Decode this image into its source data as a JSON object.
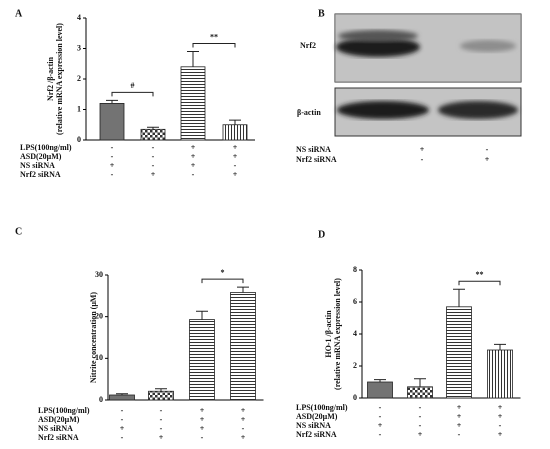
{
  "chart_data": [
    {
      "type": "bar",
      "panel_label": "A",
      "ylabel": [
        "Nrf2 /β-actin",
        "(relative mRNA expression level)"
      ],
      "values": [
        1.2,
        0.35,
        2.4,
        0.5
      ],
      "errors": [
        0.1,
        0.07,
        0.5,
        0.15
      ],
      "ylim": [
        0,
        4
      ],
      "yticks": [
        0,
        1,
        2,
        3,
        4
      ],
      "color": "#737373",
      "bar_styles": [
        "solid",
        "checker",
        "hlines",
        "vlines"
      ],
      "annotations": [
        {
          "label": "#",
          "bars": [
            0,
            1
          ]
        },
        {
          "label": "**",
          "bars": [
            2,
            3
          ]
        }
      ],
      "conditions": [
        {
          "name": "LPS(100ng/ml)",
          "signs": [
            "-",
            "-",
            "+",
            "+"
          ]
        },
        {
          "name": "ASD(20μM)",
          "signs": [
            "-",
            "-",
            "+",
            "+"
          ]
        },
        {
          "name": "NS siRNA",
          "signs": [
            "+",
            "-",
            "+",
            "-"
          ]
        },
        {
          "name": "Nrf2 siRNA",
          "signs": [
            "-",
            "+",
            "-",
            "+"
          ]
        }
      ]
    },
    {
      "type": "bar",
      "panel_label": "C",
      "ylabel": [
        "Nitrite concentration (μM)"
      ],
      "values": [
        1.2,
        2.1,
        19.3,
        25.8
      ],
      "errors": [
        0.3,
        0.6,
        2,
        1.3
      ],
      "ylim": [
        0,
        30
      ],
      "yticks": [
        0,
        10,
        20,
        30
      ],
      "color": "#737373",
      "bar_styles": [
        "solid",
        "checker",
        "hlines",
        "hlines"
      ],
      "annotations": [
        {
          "label": "*",
          "bars": [
            2,
            3
          ]
        }
      ],
      "conditions": [
        {
          "name": "LPS(100ng/ml)",
          "signs": [
            "-",
            "-",
            "+",
            "+"
          ]
        },
        {
          "name": "ASD(20μM)",
          "signs": [
            "-",
            "-",
            "+",
            "+"
          ]
        },
        {
          "name": "NS siRNA",
          "signs": [
            "+",
            "-",
            "+",
            "-"
          ]
        },
        {
          "name": "Nrf2 siRNA",
          "signs": [
            "-",
            "+",
            "-",
            "+"
          ]
        }
      ]
    },
    {
      "type": "bar",
      "panel_label": "D",
      "ylabel": [
        "HO-1 /β-actin",
        "(relative mRNA expression level)"
      ],
      "values": [
        1.0,
        0.7,
        5.7,
        3.0
      ],
      "errors": [
        0.15,
        0.5,
        1.1,
        0.35
      ],
      "ylim": [
        0,
        8
      ],
      "yticks": [
        0,
        2,
        4,
        6,
        8
      ],
      "color": "#737373",
      "bar_styles": [
        "solid",
        "checker",
        "hlines",
        "vlines"
      ],
      "annotations": [
        {
          "label": "**",
          "bars": [
            2,
            3
          ]
        }
      ],
      "conditions": [
        {
          "name": "LPS(100ng/ml)",
          "signs": [
            "-",
            "-",
            "+",
            "+"
          ]
        },
        {
          "name": "ASD(20μM)",
          "signs": [
            "-",
            "-",
            "+",
            "+"
          ]
        },
        {
          "name": "NS siRNA",
          "signs": [
            "+",
            "-",
            "+",
            "-"
          ]
        },
        {
          "name": "Nrf2 siRNA",
          "signs": [
            "-",
            "+",
            "-",
            "+"
          ]
        }
      ]
    }
  ],
  "blot": {
    "panel_label": "B",
    "bands": [
      "Nrf2",
      "β-actin"
    ],
    "conditions": [
      {
        "name": "NS siRNA",
        "signs": [
          "+",
          "-"
        ]
      },
      {
        "name": "Nrf2 siRNA",
        "signs": [
          "-",
          "+"
        ]
      }
    ]
  }
}
